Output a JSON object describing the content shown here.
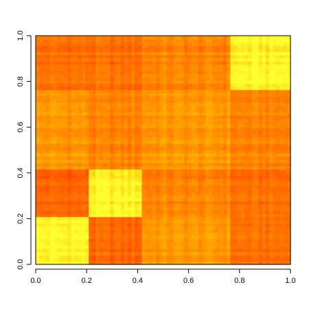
{
  "chart_data": {
    "type": "heatmap",
    "title": "",
    "xlabel": "",
    "ylabel": "",
    "xlim": [
      0,
      1
    ],
    "ylim": [
      0,
      1
    ],
    "x_ticks": [
      "0.0",
      "0.2",
      "0.4",
      "0.6",
      "0.8",
      "1.0"
    ],
    "y_ticks": [
      "0.0",
      "0.2",
      "0.4",
      "0.6",
      "0.8",
      "1.0"
    ],
    "grid": false,
    "legend": "none",
    "colormap": "heat",
    "colormap_stops": [
      "#ff2000",
      "#ff5a00",
      "#ff8c00",
      "#ffc000",
      "#ffff30"
    ],
    "block_edges": [
      0,
      0.205,
      0.415,
      0.765,
      1
    ],
    "block_values": [
      [
        0.95,
        0.3,
        0.55,
        0.35
      ],
      [
        0.3,
        0.95,
        0.45,
        0.35
      ],
      [
        0.55,
        0.45,
        0.55,
        0.45
      ],
      [
        0.35,
        0.35,
        0.45,
        0.95
      ]
    ],
    "value_range": [
      0,
      1
    ]
  }
}
